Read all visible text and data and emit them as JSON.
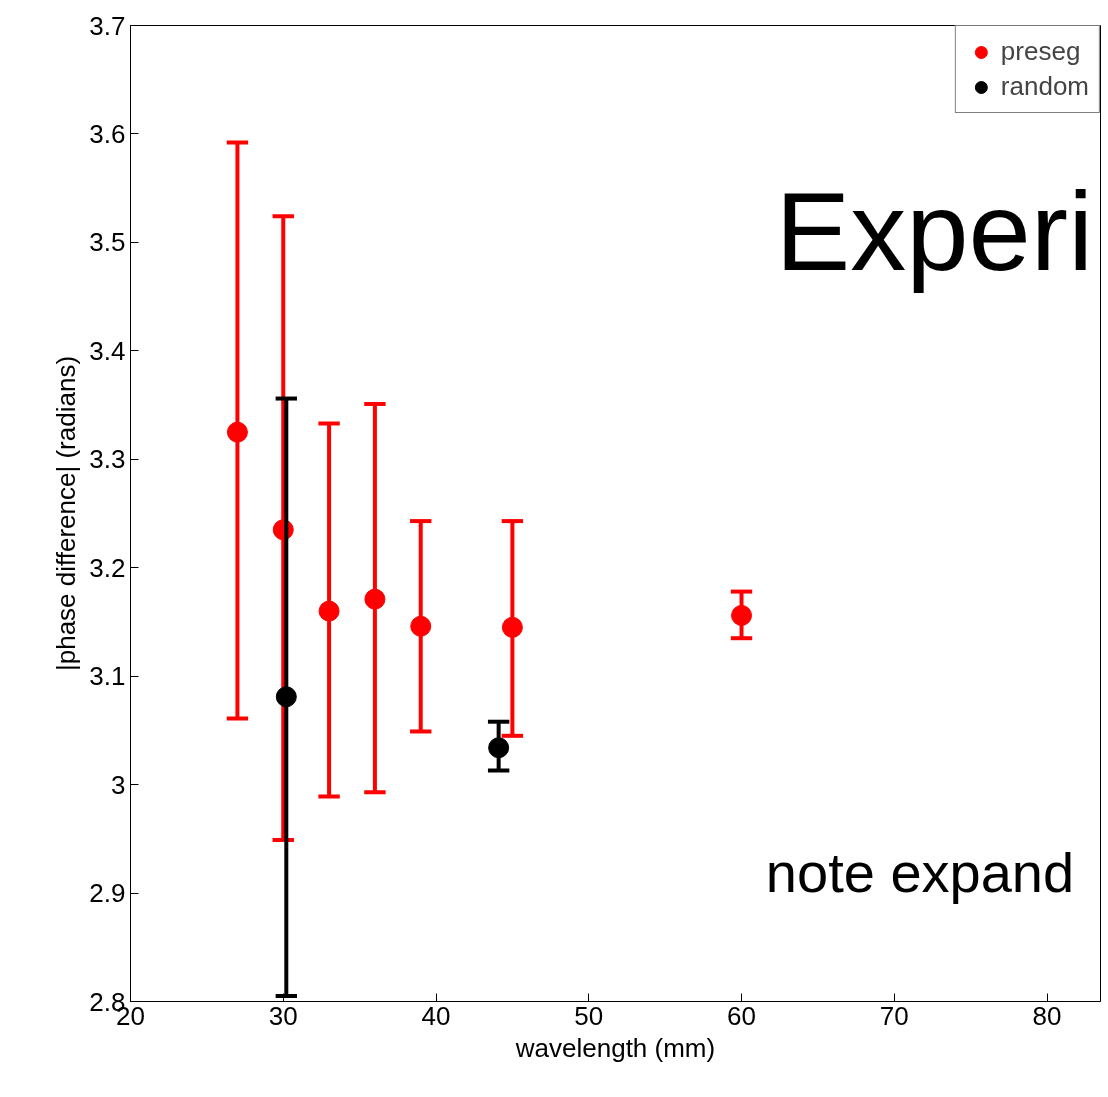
{
  "chart_data": {
    "type": "scatter",
    "xlabel": "wavelength (mm)",
    "ylabel": "|phase difference| (radians)",
    "xlim": [
      20,
      83.5
    ],
    "ylim": [
      2.8,
      3.7
    ],
    "xticks": [
      20,
      30,
      40,
      50,
      60,
      70,
      80
    ],
    "yticks": [
      2.8,
      2.9,
      3,
      3.1,
      3.2,
      3.3,
      3.4,
      3.5,
      3.6,
      3.7
    ],
    "grid": false,
    "legend": "top right",
    "marker": "circle",
    "series": [
      {
        "name": "preseg",
        "color": "#ff0000",
        "x": [
          27,
          30,
          33,
          36,
          39,
          45,
          60
        ],
        "values": [
          3.325,
          3.235,
          3.16,
          3.171,
          3.146,
          3.145,
          3.156
        ],
        "errors": [
          [
            3.061,
            3.592
          ],
          [
            2.949,
            3.524
          ],
          [
            2.989,
            3.333
          ],
          [
            2.993,
            3.351
          ],
          [
            3.049,
            3.243
          ],
          [
            3.045,
            3.243
          ],
          [
            3.135,
            3.178
          ]
        ]
      },
      {
        "name": "random",
        "color": "#000000",
        "x": [
          30.2,
          44.1
        ],
        "values": [
          3.081,
          3.034
        ],
        "errors": [
          [
            2.805,
            3.356
          ],
          [
            3.013,
            3.058
          ]
        ]
      }
    ],
    "annotations": [
      "Experi",
      "note expand"
    ]
  }
}
